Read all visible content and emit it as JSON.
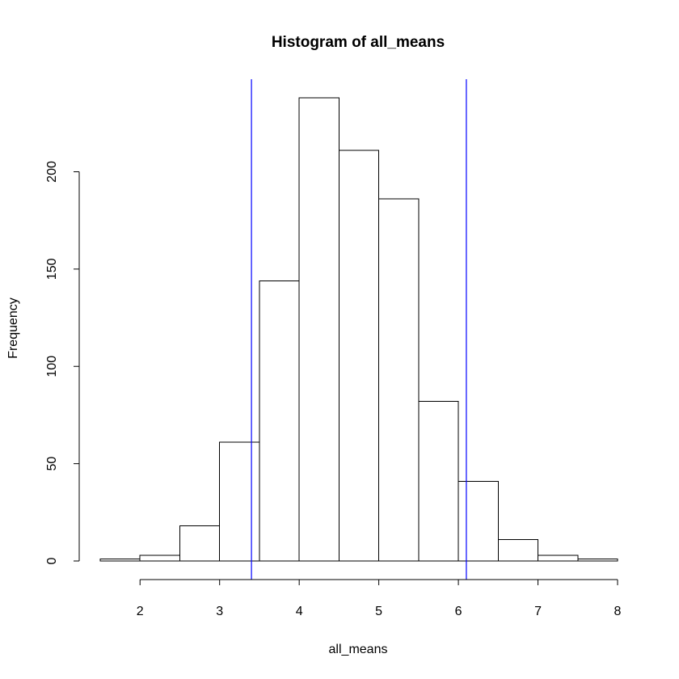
{
  "chart_data": {
    "type": "bar",
    "title": "Histogram of all_means",
    "xlabel": "all_means",
    "ylabel": "Frequency",
    "xlim": [
      1.5,
      8
    ],
    "ylim": [
      0,
      238
    ],
    "bins": [
      {
        "start": 1.5,
        "end": 2.0,
        "count": 1
      },
      {
        "start": 2.0,
        "end": 2.5,
        "count": 3
      },
      {
        "start": 2.5,
        "end": 3.0,
        "count": 18
      },
      {
        "start": 3.0,
        "end": 3.5,
        "count": 61
      },
      {
        "start": 3.5,
        "end": 4.0,
        "count": 144
      },
      {
        "start": 4.0,
        "end": 4.5,
        "count": 238
      },
      {
        "start": 4.5,
        "end": 5.0,
        "count": 211
      },
      {
        "start": 5.0,
        "end": 5.5,
        "count": 186
      },
      {
        "start": 5.5,
        "end": 6.0,
        "count": 82
      },
      {
        "start": 6.0,
        "end": 6.5,
        "count": 41
      },
      {
        "start": 6.5,
        "end": 7.0,
        "count": 11
      },
      {
        "start": 7.0,
        "end": 7.5,
        "count": 3
      },
      {
        "start": 7.5,
        "end": 8.0,
        "count": 1
      }
    ],
    "x_ticks": [
      2,
      3,
      4,
      5,
      6,
      7,
      8
    ],
    "y_ticks": [
      0,
      50,
      100,
      150,
      200
    ],
    "vlines": [
      3.4,
      6.1
    ],
    "vline_color": "#0000ff",
    "bar_fill": "#ffffff",
    "bar_stroke": "#000000",
    "grid": false
  }
}
